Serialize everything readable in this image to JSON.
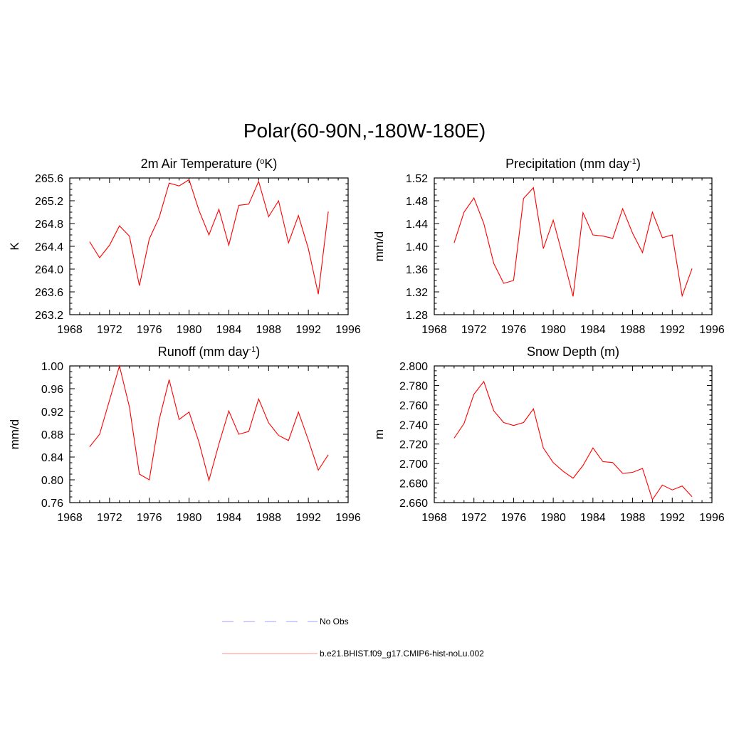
{
  "title": "Polar(60-90N,-180W-180E)",
  "chart_data": [
    {
      "type": "line",
      "title": "2m Air Temperature (",
      "title_sup": "o",
      "title_after": "K)",
      "ylabel": "K",
      "xlim": [
        1968,
        1996
      ],
      "ylim": [
        263.2,
        265.6
      ],
      "xticks": [
        "1968",
        "1972",
        "1976",
        "1980",
        "1984",
        "1988",
        "1992",
        "1996"
      ],
      "yticks": [
        "263.2",
        "263.6",
        "264.0",
        "264.4",
        "264.8",
        "265.2",
        "265.6"
      ],
      "series": [
        {
          "color": "#ff0000",
          "x": [
            1970,
            1971,
            1972,
            1973,
            1974,
            1975,
            1976,
            1977,
            1978,
            1979,
            1980,
            1981,
            1982,
            1983,
            1984,
            1985,
            1986,
            1987,
            1988,
            1989,
            1990,
            1991,
            1992,
            1993,
            1994
          ],
          "values": [
            264.48,
            264.2,
            264.42,
            264.76,
            264.58,
            263.71,
            264.53,
            264.91,
            265.51,
            265.46,
            265.57,
            265.03,
            264.6,
            265.05,
            264.42,
            265.12,
            265.14,
            265.54,
            264.92,
            265.2,
            264.46,
            264.94,
            264.36,
            263.56,
            265.01
          ]
        }
      ]
    },
    {
      "type": "line",
      "title": "Precipitation (mm day",
      "title_sup": "-1",
      "title_after": ")",
      "ylabel": "mm/d",
      "xlim": [
        1968,
        1996
      ],
      "ylim": [
        1.28,
        1.52
      ],
      "xticks": [
        "1968",
        "1972",
        "1976",
        "1980",
        "1984",
        "1988",
        "1992",
        "1996"
      ],
      "yticks": [
        "1.28",
        "1.32",
        "1.36",
        "1.40",
        "1.44",
        "1.48",
        "1.52"
      ],
      "series": [
        {
          "color": "#ff0000",
          "x": [
            1970,
            1971,
            1972,
            1973,
            1974,
            1975,
            1976,
            1977,
            1978,
            1979,
            1980,
            1981,
            1982,
            1983,
            1984,
            1985,
            1986,
            1987,
            1988,
            1989,
            1990,
            1991,
            1992,
            1993,
            1994
          ],
          "values": [
            1.406,
            1.46,
            1.485,
            1.44,
            1.37,
            1.335,
            1.34,
            1.484,
            1.503,
            1.396,
            1.446,
            1.38,
            1.312,
            1.459,
            1.42,
            1.418,
            1.414,
            1.466,
            1.423,
            1.389,
            1.46,
            1.415,
            1.42,
            1.313,
            1.361
          ]
        }
      ]
    },
    {
      "type": "line",
      "title": "Runoff (mm day",
      "title_sup": "-1",
      "title_after": ")",
      "ylabel": "mm/d",
      "xlim": [
        1968,
        1996
      ],
      "ylim": [
        0.76,
        1.0
      ],
      "xticks": [
        "1968",
        "1972",
        "1976",
        "1980",
        "1984",
        "1988",
        "1992",
        "1996"
      ],
      "yticks": [
        "0.76",
        "0.80",
        "0.84",
        "0.88",
        "0.92",
        "0.96",
        "1.00"
      ],
      "series": [
        {
          "color": "#ff0000",
          "x": [
            1970,
            1971,
            1972,
            1973,
            1974,
            1975,
            1976,
            1977,
            1978,
            1979,
            1980,
            1981,
            1982,
            1983,
            1984,
            1985,
            1986,
            1987,
            1988,
            1989,
            1990,
            1991,
            1992,
            1993,
            1994
          ],
          "values": [
            0.858,
            0.88,
            0.94,
            1.0,
            0.928,
            0.81,
            0.8,
            0.906,
            0.976,
            0.906,
            0.919,
            0.866,
            0.799,
            0.863,
            0.921,
            0.88,
            0.885,
            0.942,
            0.9,
            0.878,
            0.869,
            0.919,
            0.87,
            0.817,
            0.844
          ]
        }
      ]
    },
    {
      "type": "line",
      "title": "Snow Depth (m)",
      "title_sup": "",
      "title_after": "",
      "ylabel": "m",
      "xlim": [
        1968,
        1996
      ],
      "ylim": [
        2.66,
        2.8
      ],
      "xticks": [
        "1968",
        "1972",
        "1976",
        "1980",
        "1984",
        "1988",
        "1992",
        "1996"
      ],
      "yticks": [
        "2.660",
        "2.680",
        "2.700",
        "2.720",
        "2.740",
        "2.760",
        "2.780",
        "2.800"
      ],
      "series": [
        {
          "color": "#ff0000",
          "x": [
            1970,
            1971,
            1972,
            1973,
            1974,
            1975,
            1976,
            1977,
            1978,
            1979,
            1980,
            1981,
            1982,
            1983,
            1984,
            1985,
            1986,
            1987,
            1988,
            1989,
            1990,
            1991,
            1992,
            1993,
            1994
          ],
          "values": [
            2.726,
            2.741,
            2.771,
            2.784,
            2.754,
            2.742,
            2.739,
            2.742,
            2.756,
            2.716,
            2.701,
            2.692,
            2.685,
            2.698,
            2.716,
            2.702,
            2.701,
            2.69,
            2.691,
            2.695,
            2.663,
            2.678,
            2.673,
            2.677,
            2.666
          ]
        }
      ]
    }
  ],
  "legend": [
    {
      "label": "No Obs",
      "color": "#a0a0ff",
      "style": "dashed"
    },
    {
      "label": "b.e21.BHIST.f09_g17.CMIP6-hist-noLu.002",
      "color": "#ff9090",
      "style": "solid"
    }
  ]
}
